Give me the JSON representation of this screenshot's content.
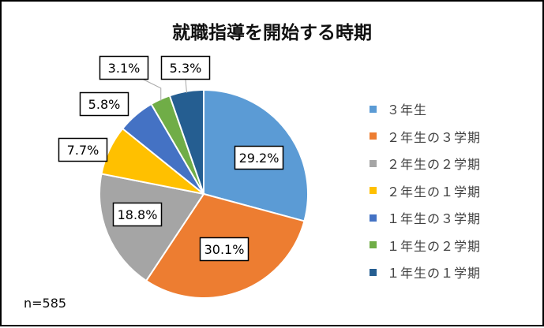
{
  "chart_data": {
    "type": "pie",
    "title": "就職指導を開始する時期",
    "note": "n=585",
    "legend_position": "right",
    "start_angle_deg": 0,
    "direction": "clockwise",
    "slices": [
      {
        "label": "３年生",
        "value": 29.2,
        "value_label": "29.2%",
        "color": "#5B9BD5"
      },
      {
        "label": "２年生の３学期",
        "value": 30.1,
        "value_label": "30.1%",
        "color": "#ED7D31"
      },
      {
        "label": "２年生の２学期",
        "value": 18.8,
        "value_label": "18.8%",
        "color": "#A5A5A5"
      },
      {
        "label": "２年生の１学期",
        "value": 7.7,
        "value_label": "7.7%",
        "color": "#FFC000"
      },
      {
        "label": "１年生の３学期",
        "value": 5.8,
        "value_label": "5.8%",
        "color": "#4472C4"
      },
      {
        "label": "１年生の２学期",
        "value": 3.1,
        "value_label": "3.1%",
        "color": "#70AD47"
      },
      {
        "label": "１年生の１学期",
        "value": 5.3,
        "value_label": "5.3%",
        "color": "#255E91"
      }
    ]
  }
}
